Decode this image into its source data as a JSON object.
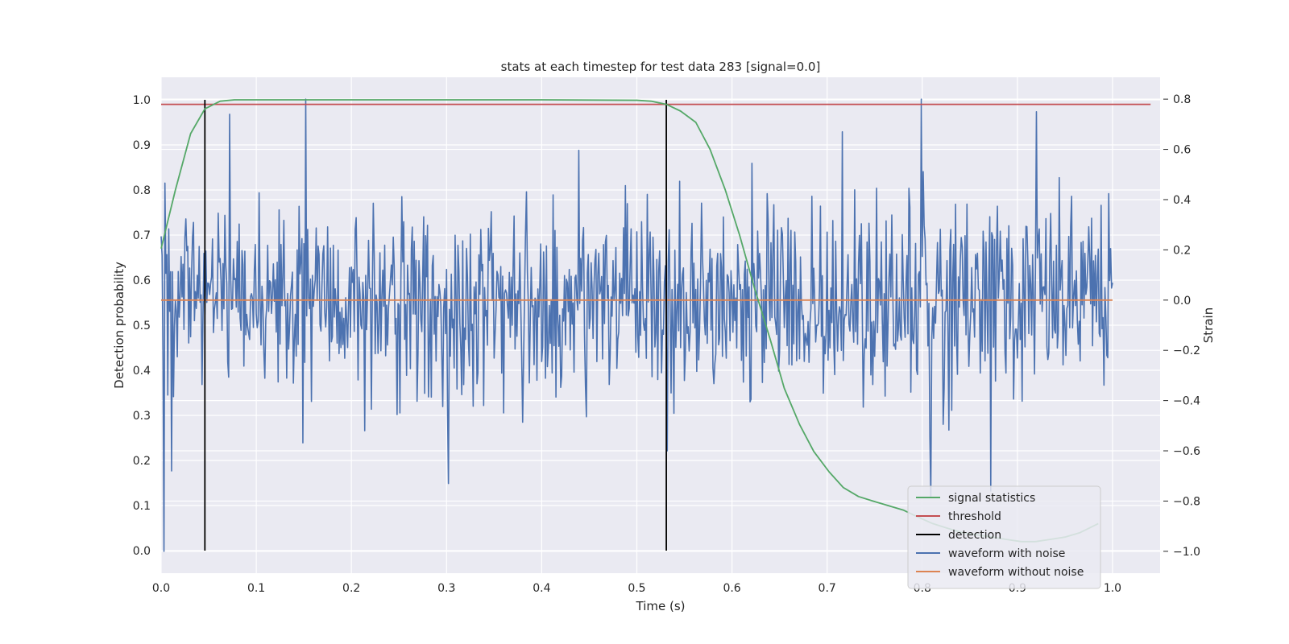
{
  "chart_data": {
    "type": "line",
    "title": "stats at each timestep for test data 283 [signal=0.0]",
    "xlabel": "Time (s)",
    "ylabel": "Detection probability",
    "y2label": "Strain",
    "xlim": [
      0.0,
      1.05
    ],
    "ylim": [
      -0.05,
      1.05
    ],
    "y2lim": [
      -1.087,
      0.887
    ],
    "xticks": [
      "0.0",
      "0.1",
      "0.2",
      "0.3",
      "0.4",
      "0.5",
      "0.6",
      "0.7",
      "0.8",
      "0.9",
      "1.0"
    ],
    "yticks": [
      "0.0",
      "0.1",
      "0.2",
      "0.3",
      "0.4",
      "0.5",
      "0.6",
      "0.7",
      "0.8",
      "0.9",
      "1.0"
    ],
    "y2ticks": [
      "−1.0",
      "−0.8",
      "−0.6",
      "−0.4",
      "−0.2",
      "0.0",
      "0.2",
      "0.4",
      "0.6",
      "0.8"
    ],
    "grid": true,
    "legend_position": "lower-right",
    "colors": {
      "background": "#eaeaf2",
      "grid": "#ffffff",
      "signal": "#55a868",
      "threshold": "#c44e52",
      "detection": "#000000",
      "noisy": "#4c72b0",
      "clean": "#dd8452"
    },
    "series": [
      {
        "name": "signal statistics",
        "axis": "left",
        "x": [
          0.0,
          0.015,
          0.031,
          0.046,
          0.062,
          0.077,
          0.093,
          0.2,
          0.3,
          0.4,
          0.5,
          0.515,
          0.531,
          0.546,
          0.562,
          0.577,
          0.593,
          0.608,
          0.624,
          0.64,
          0.655,
          0.671,
          0.686,
          0.702,
          0.717,
          0.733,
          0.748,
          0.764,
          0.78,
          0.795,
          0.811,
          0.826,
          0.842,
          0.857,
          0.873,
          0.888,
          0.904,
          0.919,
          0.935,
          0.95,
          0.966,
          0.985
        ],
        "y": [
          0.67,
          0.8,
          0.925,
          0.98,
          0.997,
          1.0,
          1.0,
          1.0,
          1.0,
          1.0,
          0.999,
          0.997,
          0.99,
          0.975,
          0.95,
          0.89,
          0.8,
          0.7,
          0.58,
          0.47,
          0.36,
          0.28,
          0.22,
          0.175,
          0.14,
          0.12,
          0.11,
          0.1,
          0.09,
          0.075,
          0.06,
          0.05,
          0.04,
          0.035,
          0.03,
          0.025,
          0.02,
          0.02,
          0.025,
          0.03,
          0.04,
          0.06
        ]
      },
      {
        "name": "threshold",
        "axis": "left",
        "x": [
          0.0,
          1.04
        ],
        "y": [
          0.99,
          0.99
        ]
      },
      {
        "name": "detection",
        "axis": "left",
        "x": [
          0.046,
          0.531
        ],
        "y_range": [
          0.0,
          1.0
        ]
      },
      {
        "name": "waveform with noise",
        "axis": "right",
        "x_range": [
          0.0,
          1.0
        ],
        "sample_count": 1001,
        "peaks": [
          {
            "x": 0.003,
            "y": -1.0
          },
          {
            "x": 0.011,
            "y": -0.68
          },
          {
            "x": 0.072,
            "y": 0.74
          },
          {
            "x": 0.152,
            "y": 0.8
          },
          {
            "x": 0.302,
            "y": -0.73
          },
          {
            "x": 0.532,
            "y": -0.6
          },
          {
            "x": 0.716,
            "y": 0.67
          },
          {
            "x": 0.799,
            "y": 0.8
          },
          {
            "x": 0.809,
            "y": -0.78
          },
          {
            "x": 0.872,
            "y": -0.76
          },
          {
            "x": 0.92,
            "y": 0.75
          }
        ],
        "typical_amplitude": 0.3
      },
      {
        "name": "waveform without noise",
        "axis": "right",
        "x": [
          0.0,
          1.0
        ],
        "y": [
          0.0,
          0.0
        ]
      }
    ]
  }
}
